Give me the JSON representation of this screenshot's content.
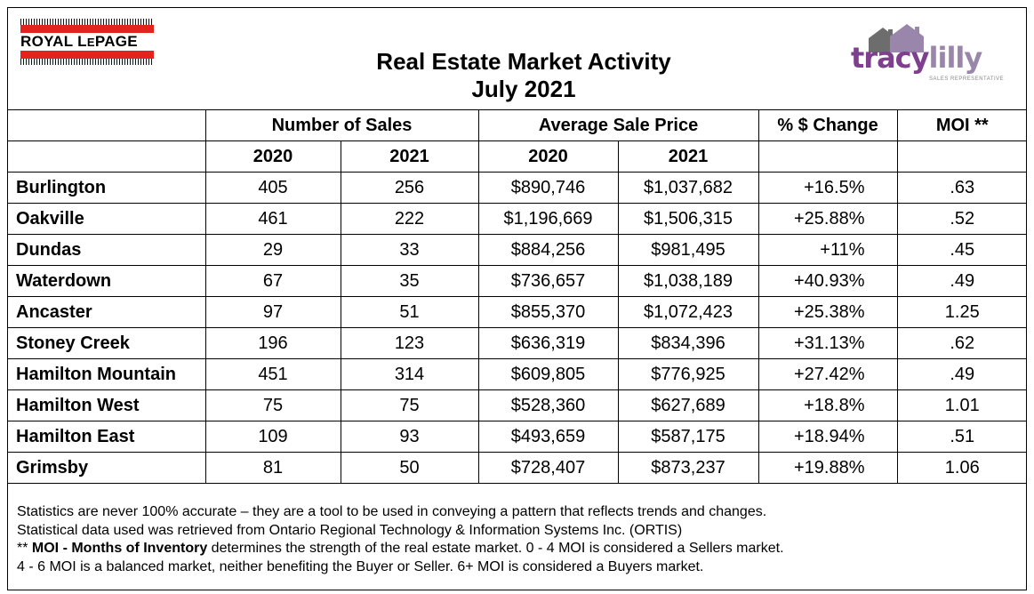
{
  "header": {
    "brand_left": {
      "part1": "ROYAL L",
      "part2": "E",
      "part3": "PAGE"
    },
    "title_line1": "Real Estate Market Activity",
    "title_line2": "July 2021",
    "brand_right": {
      "first": "tracy",
      "last": "lilly",
      "tagline": "SALES REPRESENTATIVE"
    }
  },
  "table": {
    "group_headers": {
      "sales": "Number of Sales",
      "price": "Average Sale Price",
      "change": "% $ Change",
      "moi": "MOI **"
    },
    "year_headers": {
      "sales_2020": "2020",
      "sales_2021": "2021",
      "price_2020": "2020",
      "price_2021": "2021"
    },
    "rows": [
      {
        "city": "Burlington",
        "sales_2020": "405",
        "sales_2021": "256",
        "price_2020": "$890,746",
        "price_2021": "$1,037,682",
        "change": "+16.5%",
        "moi": ".63"
      },
      {
        "city": "Oakville",
        "sales_2020": "461",
        "sales_2021": "222",
        "price_2020": "$1,196,669",
        "price_2021": "$1,506,315",
        "change": "+25.88%",
        "moi": ".52"
      },
      {
        "city": "Dundas",
        "sales_2020": "29",
        "sales_2021": "33",
        "price_2020": "$884,256",
        "price_2021": "$981,495",
        "change": "+11%",
        "moi": ".45"
      },
      {
        "city": "Waterdown",
        "sales_2020": "67",
        "sales_2021": "35",
        "price_2020": "$736,657",
        "price_2021": "$1,038,189",
        "change": "+40.93%",
        "moi": ".49"
      },
      {
        "city": "Ancaster",
        "sales_2020": "97",
        "sales_2021": "51",
        "price_2020": "$855,370",
        "price_2021": "$1,072,423",
        "change": "+25.38%",
        "moi": "1.25"
      },
      {
        "city": "Stoney Creek",
        "sales_2020": "196",
        "sales_2021": "123",
        "price_2020": "$636,319",
        "price_2021": "$834,396",
        "change": "+31.13%",
        "moi": ".62"
      },
      {
        "city": "Hamilton Mountain",
        "sales_2020": "451",
        "sales_2021": "314",
        "price_2020": "$609,805",
        "price_2021": "$776,925",
        "change": "+27.42%",
        "moi": ".49"
      },
      {
        "city": "Hamilton West",
        "sales_2020": "75",
        "sales_2021": "75",
        "price_2020": "$528,360",
        "price_2021": "$627,689",
        "change": "+18.8%",
        "moi": "1.01"
      },
      {
        "city": "Hamilton East",
        "sales_2020": "109",
        "sales_2021": "93",
        "price_2020": "$493,659",
        "price_2021": "$587,175",
        "change": "+18.94%",
        "moi": ".51"
      },
      {
        "city": "Grimsby",
        "sales_2020": "81",
        "sales_2021": "50",
        "price_2020": "$728,407",
        "price_2021": "$873,237",
        "change": "+19.88%",
        "moi": "1.06"
      }
    ]
  },
  "notes": {
    "line1": "Statistics are never 100% accurate – they are a tool to be used in conveying a pattern that reflects trends and changes.",
    "line2": "Statistical data used was retrieved from Ontario Regional Technology & Information Systems Inc. (ORTIS)",
    "line3_prefix": "** ",
    "line3_bold": "MOI - Months of Inventory",
    "line3_rest": " determines the strength of the real estate market. 0 - 4 MOI is considered a Sellers market.",
    "line4": "4 - 6 MOI is a balanced market, neither benefiting the Buyer or Seller. 6+ MOI is considered a Buyers market."
  },
  "colors": {
    "brand_red": "#e3231f",
    "brand_purple": "#7d3f8e",
    "brand_lilac": "#9a86aa",
    "house_grey": "#6d6d6d"
  }
}
